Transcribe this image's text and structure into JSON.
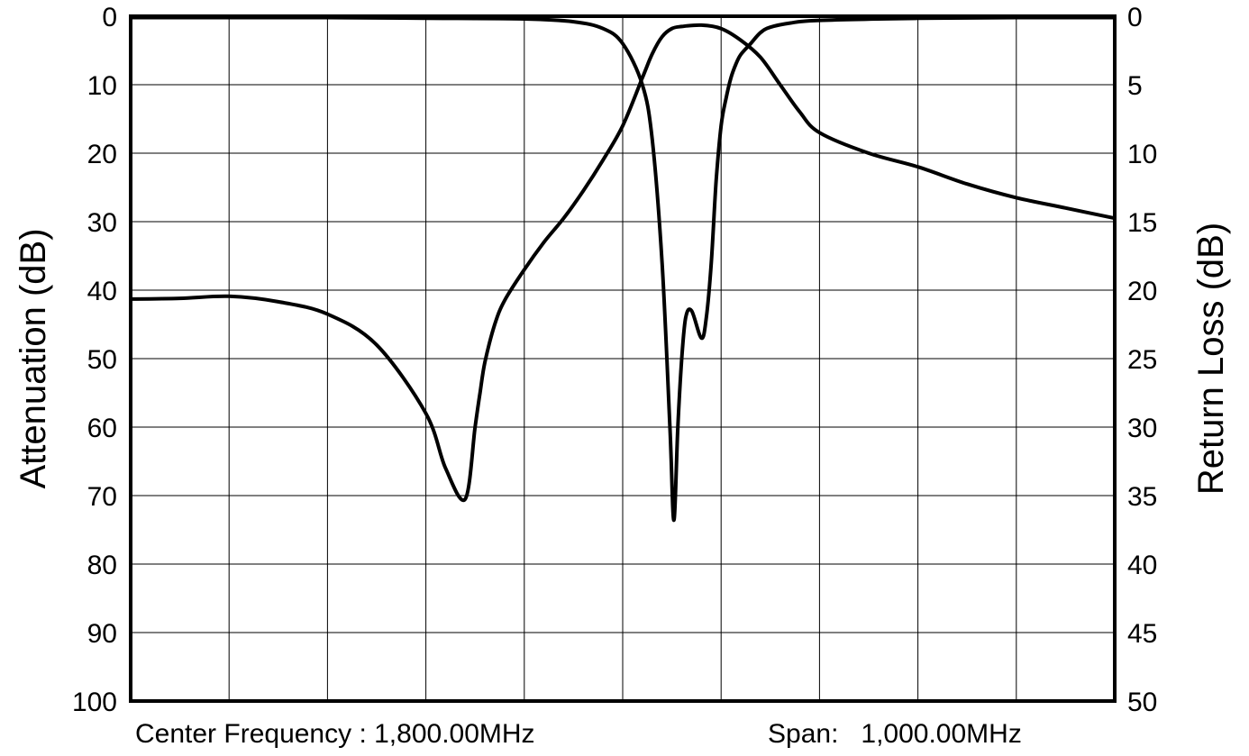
{
  "chart_data": {
    "type": "line",
    "xlim": [
      1300,
      2300
    ],
    "x_divisions": 10,
    "grid": true,
    "left_axis": {
      "label": "Attenuation (dB)",
      "range": [
        0,
        100
      ],
      "ticks": [
        "0",
        "10",
        "20",
        "30",
        "40",
        "50",
        "60",
        "70",
        "80",
        "90",
        "100"
      ]
    },
    "right_axis": {
      "label": "Return Loss (dB)",
      "range": [
        0,
        50
      ],
      "ticks": [
        "0",
        "5",
        "10",
        "15",
        "20",
        "25",
        "30",
        "35",
        "40",
        "45",
        "50"
      ]
    },
    "footer": {
      "center_frequency": "Center Frequency : 1,800.00MHz",
      "span": "Span:   1,000.00MHz"
    },
    "series": [
      {
        "axis": "left",
        "x": [
          1300,
          1350,
          1400,
          1450,
          1500,
          1550,
          1600,
          1620,
          1640,
          1650,
          1655,
          1660,
          1670,
          1680,
          1700,
          1720,
          1740,
          1760,
          1780,
          1800,
          1820,
          1830,
          1840,
          1850,
          1860,
          1880,
          1900,
          1920,
          1940,
          1960,
          1980,
          2000,
          2050,
          2100,
          2150,
          2200,
          2250,
          2300
        ],
        "values": [
          41.3,
          41.2,
          40.9,
          41.7,
          43.5,
          48,
          58,
          66,
          70.5,
          60,
          55,
          50.5,
          45,
          41.5,
          37,
          33,
          29.5,
          25.5,
          21,
          16,
          9,
          5.5,
          3,
          1.8,
          1.5,
          1.3,
          1.8,
          3.5,
          6,
          10,
          14,
          17,
          20,
          22,
          24.5,
          26.5,
          28,
          29.5
        ]
      },
      {
        "axis": "right",
        "x": [
          1300,
          1400,
          1500,
          1600,
          1700,
          1750,
          1780,
          1800,
          1820,
          1830,
          1840,
          1848,
          1852,
          1856,
          1860,
          1864,
          1870,
          1880,
          1885,
          1890,
          1895,
          1900,
          1905,
          1910,
          1915,
          1920,
          1930,
          1940,
          1950,
          1970,
          2000,
          2100,
          2200,
          2300
        ],
        "values": [
          0.1,
          0.1,
          0.1,
          0.15,
          0.2,
          0.4,
          0.9,
          2,
          5,
          9,
          18,
          30,
          36.8,
          30,
          25,
          22,
          21.5,
          23.5,
          22,
          18,
          12,
          8,
          6,
          4.5,
          3.5,
          2.8,
          2,
          1.2,
          0.8,
          0.5,
          0.3,
          0.15,
          0.1,
          0.1
        ]
      }
    ]
  }
}
